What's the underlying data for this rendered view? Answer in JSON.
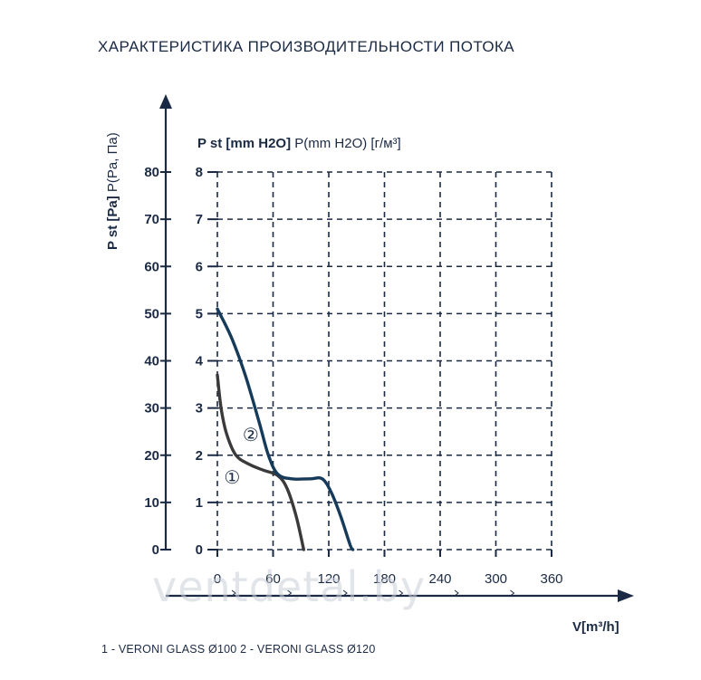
{
  "title": "ХАРАКТЕРИСТИКА ПРОИЗВОДИТЕЛЬНОСТИ ПОТОКА",
  "footer": "1 - VERONI GLASS Ø100   2 - VERONI GLASS Ø120",
  "watermark": "ventdetal.by",
  "colors": {
    "text": "#1b2a44",
    "curve1": "#3a3a3a",
    "curve2": "#163a5a"
  },
  "chart_data": {
    "type": "line",
    "y_left_label": {
      "bold": "P st [Pa]",
      "normal": " P(Pa, Па)"
    },
    "y_right_label": {
      "bold": "P st [mm H2O]",
      "normal": " P(mm H2O) [г/м³]"
    },
    "xlabel": "V[m³/h]",
    "y_left_ticks": [
      "0",
      "10",
      "20",
      "30",
      "40",
      "50",
      "60",
      "70",
      "80"
    ],
    "y_right_ticks": [
      "0",
      "1",
      "2",
      "3",
      "4",
      "5",
      "6",
      "7",
      "8"
    ],
    "x_ticks": [
      "0",
      "60",
      "120",
      "180",
      "240",
      "300",
      "360"
    ],
    "xlim": [
      0,
      360
    ],
    "ylim": [
      0,
      80
    ],
    "grid": true,
    "series": [
      {
        "name": "1",
        "label": "①",
        "points": [
          [
            0,
            37
          ],
          [
            4,
            30
          ],
          [
            10,
            24.5
          ],
          [
            20,
            20
          ],
          [
            35,
            18
          ],
          [
            50,
            16.8
          ],
          [
            65,
            15.7
          ],
          [
            75,
            13
          ],
          [
            85,
            7
          ],
          [
            93,
            0
          ]
        ]
      },
      {
        "name": "2",
        "label": "②",
        "points": [
          [
            0,
            51
          ],
          [
            15,
            45
          ],
          [
            30,
            37
          ],
          [
            45,
            27
          ],
          [
            55,
            20
          ],
          [
            65,
            16
          ],
          [
            80,
            15
          ],
          [
            100,
            15
          ],
          [
            113,
            15
          ],
          [
            123,
            12
          ],
          [
            133,
            7
          ],
          [
            143,
            1
          ],
          [
            146,
            0
          ]
        ]
      }
    ]
  }
}
